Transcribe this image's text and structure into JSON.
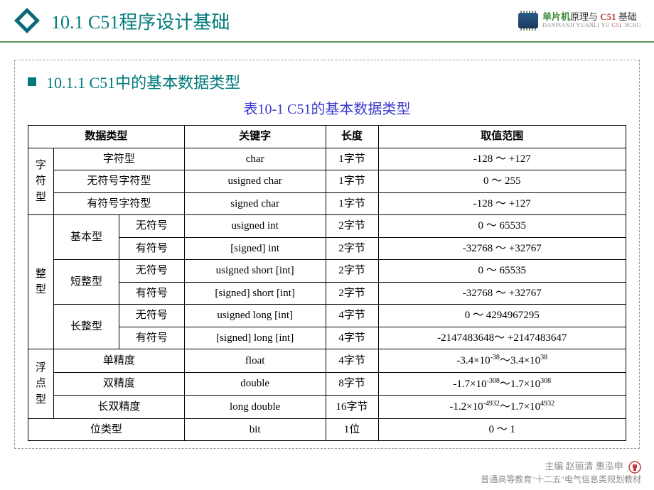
{
  "header": {
    "title": "10.1  C51程序设计基础",
    "brand_main_a": "单片机",
    "brand_main_b": "原理与",
    "brand_main_c": "C51",
    "brand_main_d": "基础",
    "brand_sub_a": "DANPIANJI YUANLI YU ",
    "brand_sub_b": "C51",
    "brand_sub_c": " JICHU",
    "logo_color_outer": "#0a6a7a",
    "logo_color_inner": "#ffffff"
  },
  "content": {
    "section_title": "10.1.1  C51中的基本数据类型",
    "table_caption": "表10-1 C51的基本数据类型",
    "accent_color": "#007a7a",
    "caption_color": "#3a3acc"
  },
  "table": {
    "headers": {
      "datatype": "数据类型",
      "keyword": "关键字",
      "length": "长度",
      "range": "取值范围"
    },
    "groups": [
      {
        "group_label": "字符型",
        "rows": [
          {
            "sub": "字符型",
            "sub_colspan": 2,
            "keyword": "char",
            "length": "1字节",
            "range": "-128 ～ +127"
          },
          {
            "sub": "无符号字符型",
            "sub_colspan": 2,
            "keyword": "usigned  char",
            "length": "1字节",
            "range": "0 ～ 255"
          },
          {
            "sub": "有符号字符型",
            "sub_colspan": 2,
            "keyword": "signed  char",
            "length": "1字节",
            "range": "-128 ～ +127"
          }
        ]
      },
      {
        "group_label": "整型",
        "subgroups": [
          {
            "sub_label": "基本型",
            "rows": [
              {
                "sign": "无符号",
                "keyword": "usigned  int",
                "length": "2字节",
                "range": "0 ～ 65535"
              },
              {
                "sign": "有符号",
                "keyword": "[signed]  int",
                "length": "2字节",
                "range": "-32768 ～ +32767"
              }
            ]
          },
          {
            "sub_label": "短整型",
            "rows": [
              {
                "sign": "无符号",
                "keyword": "usigned  short  [int]",
                "length": "2字节",
                "range": "0 ～ 65535"
              },
              {
                "sign": "有符号",
                "keyword": "[signed]  short  [int]",
                "length": "2字节",
                "range": "-32768 ～ +32767"
              }
            ]
          },
          {
            "sub_label": "长整型",
            "rows": [
              {
                "sign": "无符号",
                "keyword": "usigned  long  [int]",
                "length": "4字节",
                "range": "0 ～ 4294967295"
              },
              {
                "sign": "有符号",
                "keyword": "[signed]  long  [int]",
                "length": "4字节",
                "range": "-2147483648～ +2147483647"
              }
            ]
          }
        ]
      },
      {
        "group_label": "浮点型",
        "rows": [
          {
            "sub": "单精度",
            "sub_colspan": 2,
            "keyword": "float",
            "length": "4字节",
            "range_html": "-3.4×10<sup>-38</sup>～3.4×10<sup>38</sup>"
          },
          {
            "sub": "双精度",
            "sub_colspan": 2,
            "keyword": "double",
            "length": "8字节",
            "range_html": "-1.7×10<sup>-308</sup>～1.7×10<sup>308</sup>"
          },
          {
            "sub": "长双精度",
            "sub_colspan": 2,
            "keyword": "long  double",
            "length": "16字节",
            "range_html": "-1.2×10<sup>-4932</sup>～1.7×10<sup>4932</sup>"
          }
        ]
      },
      {
        "group_label": "",
        "rows": [
          {
            "sub": "位类型",
            "sub_colspan": 3,
            "full": true,
            "keyword": "bit",
            "length": "1位",
            "range": "0 ～ 1"
          }
        ]
      }
    ]
  },
  "footer": {
    "line1": "主编  赵丽清  惠泓申",
    "line2": "普通高等教育\"十二五\"电气信息类规划教材",
    "badge_color": "#c23a3a"
  }
}
